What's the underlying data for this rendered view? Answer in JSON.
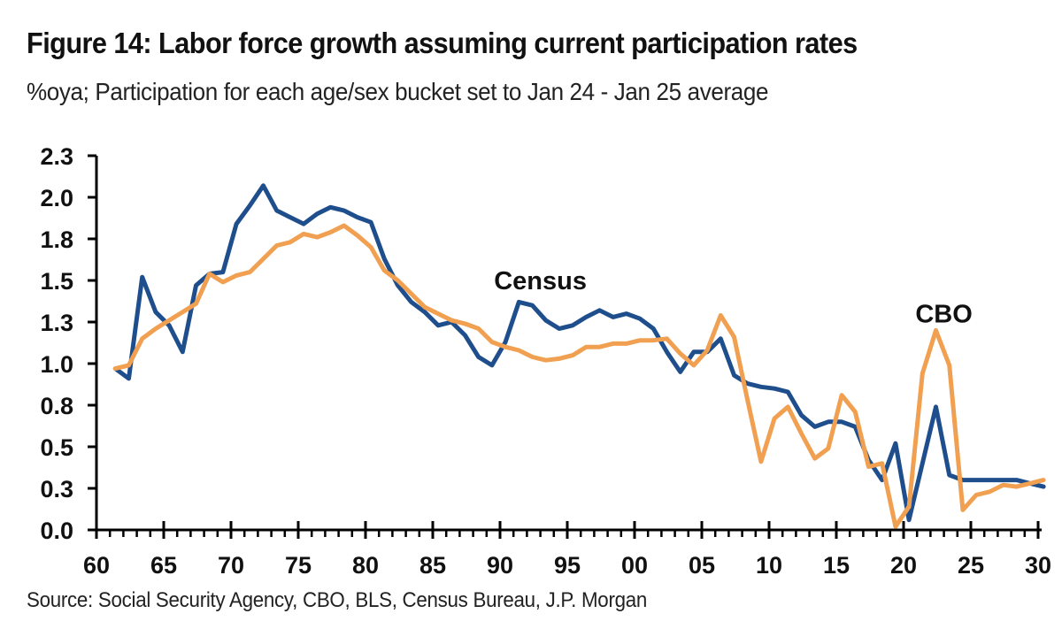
{
  "header": {
    "title": "Figure 14: Labor force growth assuming current participation rates",
    "subtitle": "%oya; Participation for each age/sex bucket set to Jan 24 - Jan 25 average"
  },
  "footer": {
    "source": "Source: Social Security Agency, CBO, BLS, Census Bureau, J.P. Morgan"
  },
  "chart_data": {
    "type": "line",
    "title": "Figure 14: Labor force growth assuming current participation rates",
    "subtitle": "%oya; Participation for each age/sex bucket set to Jan 24 - Jan 25 average",
    "xlabel": "",
    "ylabel": "",
    "xlim": [
      1960,
      2030
    ],
    "ylim": [
      0,
      2.25
    ],
    "yticks": [
      0,
      0.25,
      0.5,
      0.75,
      1.0,
      1.25,
      1.5,
      1.75,
      2.0,
      2.25
    ],
    "ytick_labels": [
      "0.0",
      "0.3",
      "0.5",
      "0.8",
      "1.0",
      "1.3",
      "1.5",
      "1.8",
      "2.0",
      "2.3"
    ],
    "xticks": [
      1960,
      1965,
      1970,
      1975,
      1980,
      1985,
      1990,
      1995,
      2000,
      2005,
      2010,
      2015,
      2020,
      2025,
      2030
    ],
    "xtick_labels": [
      "60",
      "65",
      "70",
      "75",
      "80",
      "85",
      "90",
      "95",
      "00",
      "05",
      "10",
      "15",
      "20",
      "25",
      "30"
    ],
    "grid": false,
    "legend": "none (inline annotations)",
    "x": [
      1961,
      1962,
      1963,
      1964,
      1965,
      1966,
      1967,
      1968,
      1969,
      1970,
      1971,
      1972,
      1973,
      1974,
      1975,
      1976,
      1977,
      1978,
      1979,
      1980,
      1981,
      1982,
      1983,
      1984,
      1985,
      1986,
      1987,
      1988,
      1989,
      1990,
      1991,
      1992,
      1993,
      1994,
      1995,
      1996,
      1997,
      1998,
      1999,
      2000,
      2001,
      2002,
      2003,
      2004,
      2005,
      2006,
      2007,
      2008,
      2009,
      2010,
      2011,
      2012,
      2013,
      2014,
      2015,
      2016,
      2017,
      2018,
      2019,
      2020,
      2021,
      2022,
      2023,
      2024,
      2025,
      2026,
      2027,
      2028,
      2029,
      2030
    ],
    "series": [
      {
        "name": "Census",
        "color": "#1f4e8c",
        "values": [
          0.97,
          0.91,
          1.52,
          1.31,
          1.23,
          1.07,
          1.47,
          1.54,
          1.55,
          1.84,
          1.95,
          2.07,
          1.92,
          1.88,
          1.84,
          1.9,
          1.94,
          1.92,
          1.88,
          1.85,
          1.63,
          1.47,
          1.37,
          1.31,
          1.23,
          1.25,
          1.17,
          1.04,
          0.99,
          1.13,
          1.37,
          1.35,
          1.26,
          1.21,
          1.23,
          1.28,
          1.32,
          1.28,
          1.3,
          1.27,
          1.21,
          1.07,
          0.95,
          1.07,
          1.07,
          1.15,
          0.93,
          0.88,
          0.86,
          0.85,
          0.83,
          0.69,
          0.62,
          0.65,
          0.65,
          0.62,
          0.42,
          0.3,
          0.52,
          0.06,
          0.4,
          0.74,
          0.33,
          0.3,
          0.3,
          0.3,
          0.3,
          0.3,
          0.28,
          0.26
        ]
      },
      {
        "name": "CBO",
        "color": "#f0a050",
        "values": [
          0.97,
          0.99,
          1.15,
          1.21,
          1.26,
          1.31,
          1.36,
          1.54,
          1.49,
          1.53,
          1.55,
          1.63,
          1.71,
          1.73,
          1.78,
          1.76,
          1.79,
          1.83,
          1.77,
          1.7,
          1.56,
          1.5,
          1.42,
          1.34,
          1.3,
          1.26,
          1.24,
          1.21,
          1.13,
          1.1,
          1.08,
          1.04,
          1.02,
          1.03,
          1.05,
          1.1,
          1.1,
          1.12,
          1.12,
          1.14,
          1.14,
          1.15,
          1.06,
          0.99,
          1.08,
          1.29,
          1.16,
          0.78,
          0.41,
          0.67,
          0.74,
          0.58,
          0.43,
          0.49,
          0.81,
          0.71,
          0.38,
          0.4,
          0.02,
          0.14,
          0.94,
          1.2,
          0.99,
          0.12,
          0.21,
          0.23,
          0.27,
          0.26,
          0.28,
          0.3
        ]
      }
    ],
    "annotations": [
      {
        "text": "Census",
        "series": "Census",
        "x": 1993,
        "y": 1.5
      },
      {
        "text": "CBO",
        "series": "CBO",
        "x": 2023,
        "y": 1.3
      }
    ]
  }
}
